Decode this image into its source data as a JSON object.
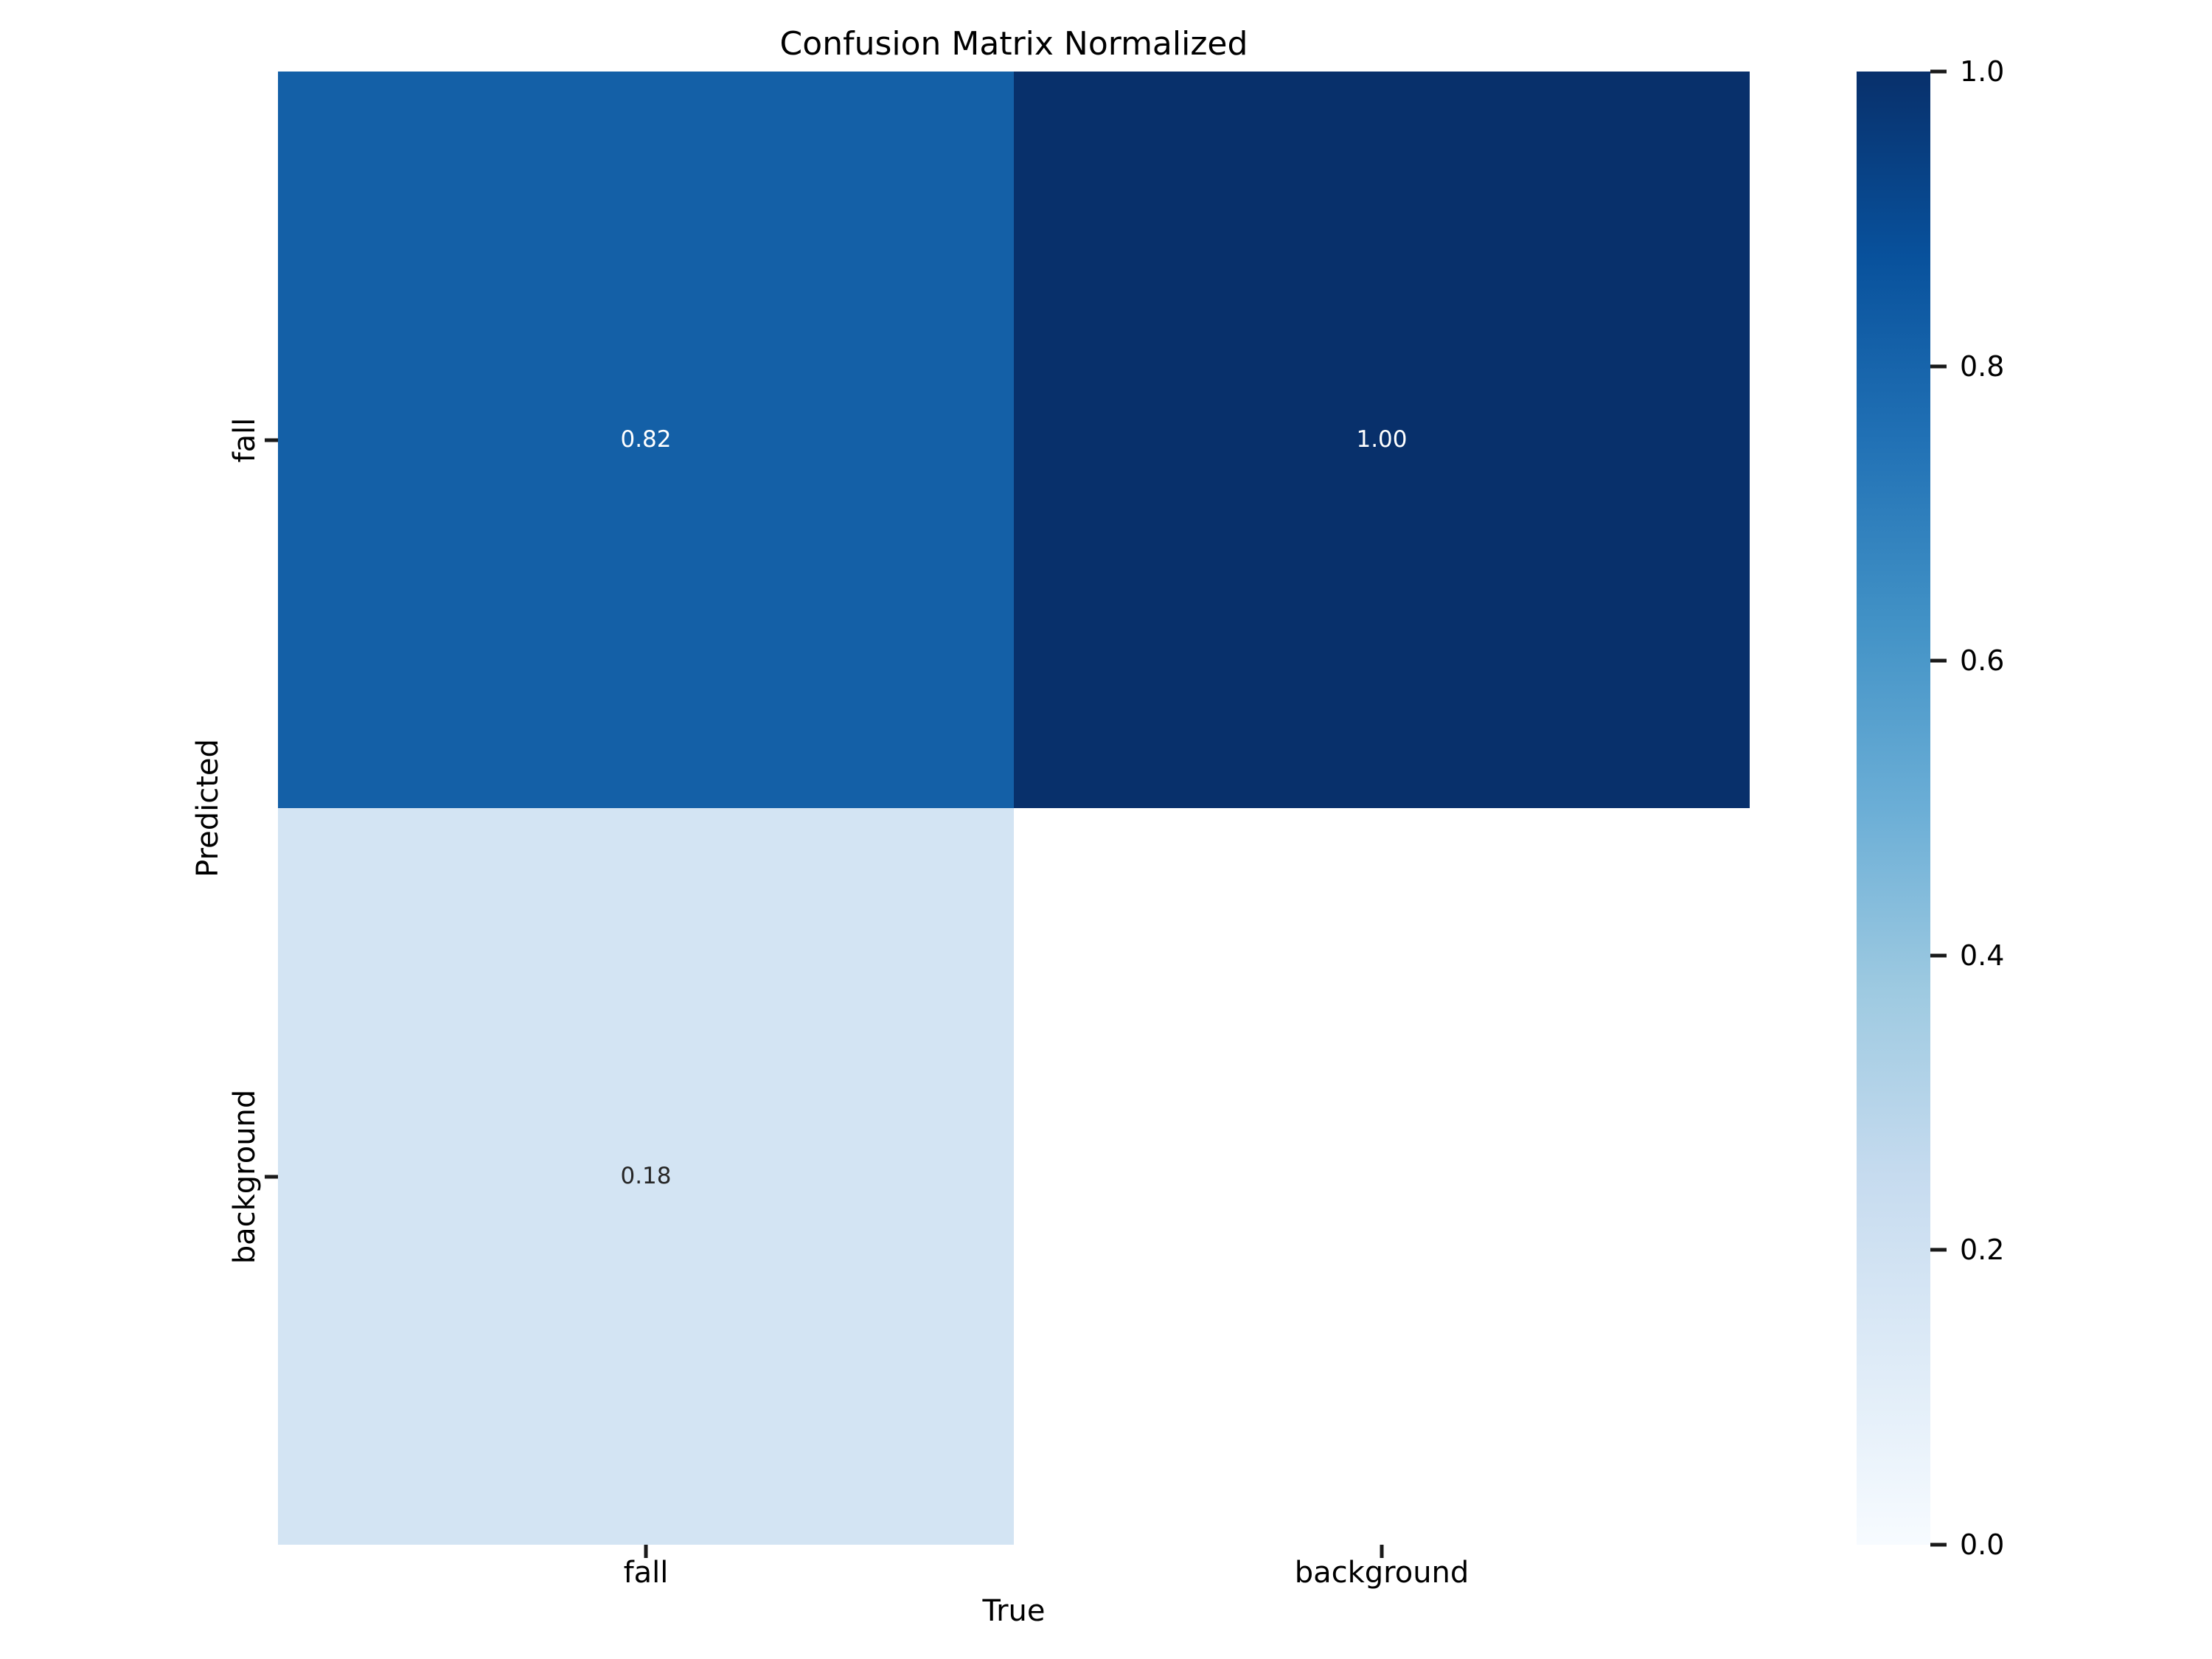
{
  "title": "Confusion Matrix Normalized",
  "axes": {
    "x_label": "True",
    "y_label": "Predicted",
    "x_tick_labels": [
      "fall",
      "background"
    ],
    "y_tick_labels": [
      "fall",
      "background"
    ]
  },
  "colorbar": {
    "ticks": [
      {
        "label": "1.0",
        "value": 1.0
      },
      {
        "label": "0.8",
        "value": 0.8
      },
      {
        "label": "0.6",
        "value": 0.6
      },
      {
        "label": "0.4",
        "value": 0.4
      },
      {
        "label": "0.2",
        "value": 0.2
      },
      {
        "label": "0.0",
        "value": 0.0
      }
    ],
    "gradient_stops": [
      {
        "value": 1.0,
        "color": "#08306B"
      },
      {
        "value": 0.875,
        "color": "#08519C"
      },
      {
        "value": 0.75,
        "color": "#2171B5"
      },
      {
        "value": 0.625,
        "color": "#4292C6"
      },
      {
        "value": 0.5,
        "color": "#6BAED6"
      },
      {
        "value": 0.375,
        "color": "#9ECAE1"
      },
      {
        "value": 0.25,
        "color": "#C6DBEF"
      },
      {
        "value": 0.125,
        "color": "#DEEBF7"
      },
      {
        "value": 0.0,
        "color": "#F7FBFF"
      }
    ]
  },
  "chart_data": {
    "type": "heatmap",
    "title": "Confusion Matrix Normalized",
    "xlabel": "True",
    "ylabel": "Predicted",
    "x_categories": [
      "fall",
      "background"
    ],
    "y_categories": [
      "fall",
      "background"
    ],
    "matrix": [
      [
        0.82,
        1.0
      ],
      [
        0.18,
        null
      ]
    ],
    "annotations": [
      [
        "0.82",
        "1.00"
      ],
      [
        "0.18",
        ""
      ]
    ],
    "cell_colors": [
      [
        "#1460A7",
        "#08306B"
      ],
      [
        "#D3E4F3",
        "#FFFFFF"
      ]
    ],
    "annotation_colors": [
      [
        "#FFFFFF",
        "#FFFFFF"
      ],
      [
        "#262626",
        "#262626"
      ]
    ],
    "colormap": "Blues",
    "colorbar_range": [
      0.0,
      1.0
    ],
    "legend_position": "right-colorbar",
    "grid": false
  }
}
